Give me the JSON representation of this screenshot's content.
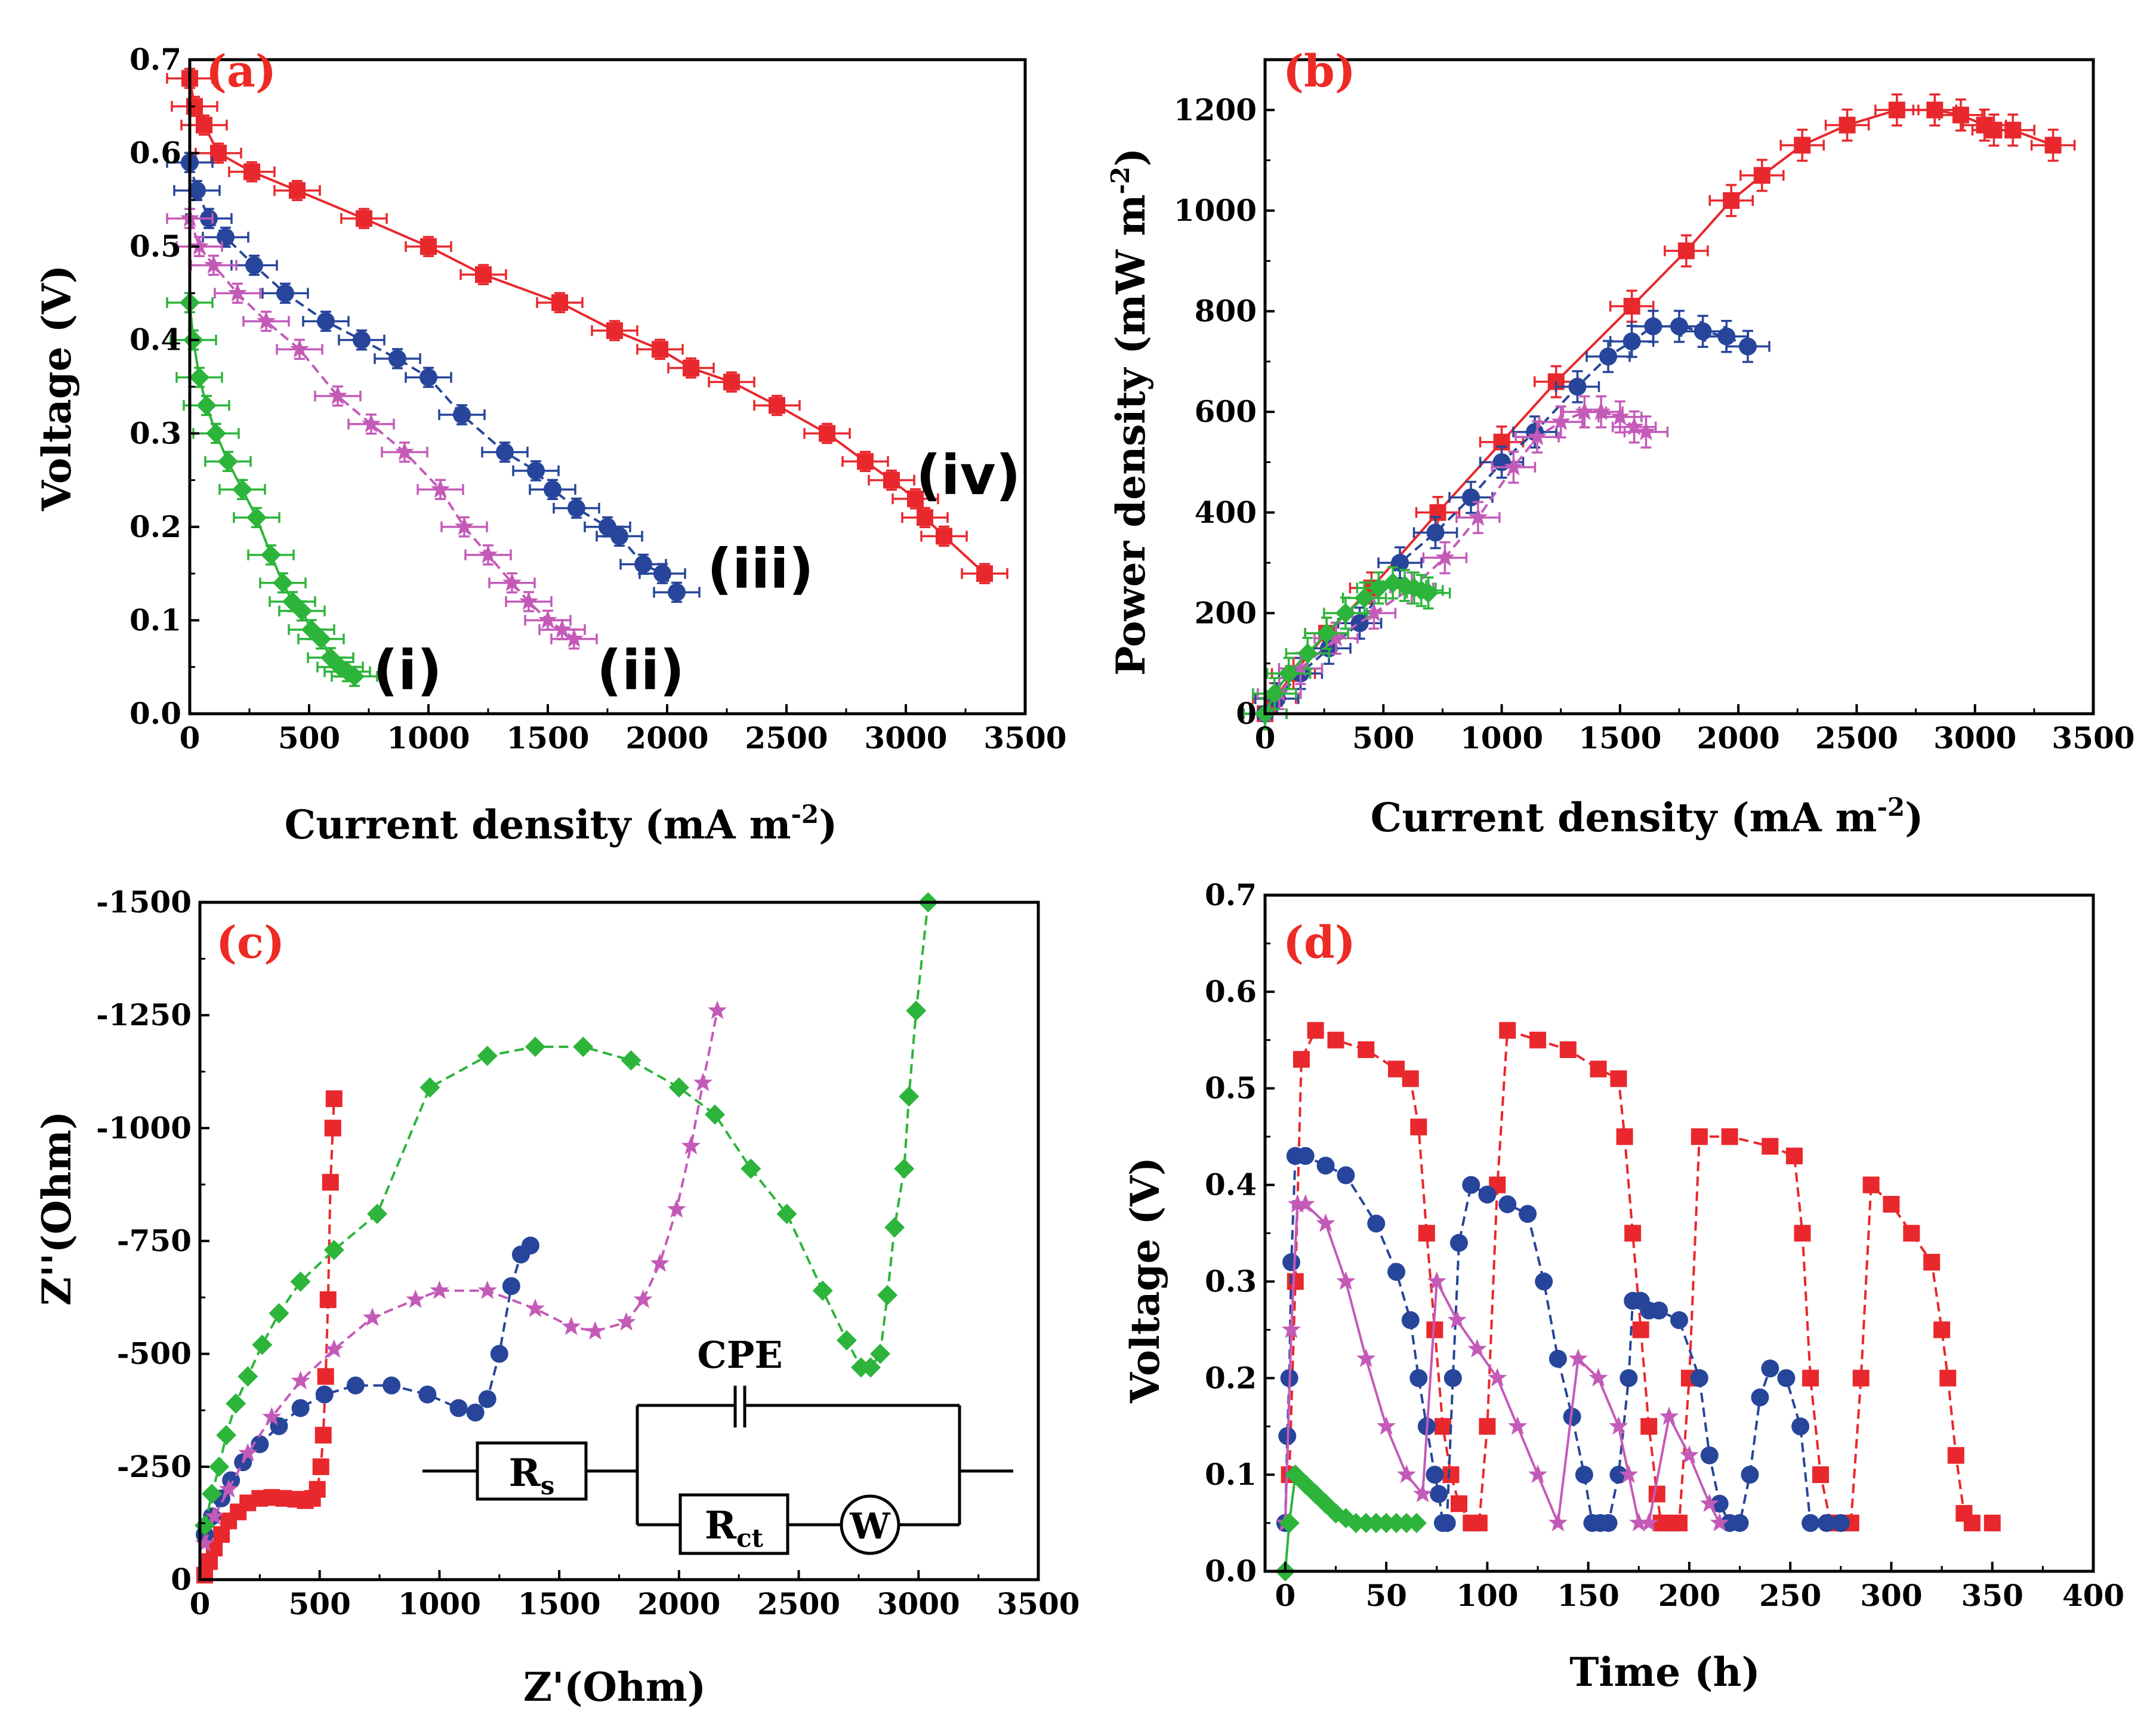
{
  "colors": {
    "red": "#e8282d",
    "blue": "#27459a",
    "pink": "#c45ab8",
    "green": "#2db43b",
    "panel_label": "#ee2a24"
  },
  "chart_data": [
    {
      "id": "a",
      "type": "line",
      "panel_label": "(a)",
      "xlabel": "Current density (mA m",
      "xlabel_sup": "-2",
      "xlabel_end": ")",
      "ylabel": "Voltage (V)",
      "xlim": [
        0,
        3500
      ],
      "ylim": [
        0,
        0.7
      ],
      "xticks": [
        "0",
        "500",
        "1000",
        "1500",
        "2000",
        "2500",
        "3000",
        "3500"
      ],
      "yticks": [
        "0.0",
        "0.1",
        "0.2",
        "0.3",
        "0.4",
        "0.5",
        "0.6",
        "0.7"
      ],
      "curve_labels": [
        "(i)",
        "(ii)",
        "(iii)",
        "(iv)"
      ],
      "series": [
        {
          "name": "(iv)",
          "color": "red",
          "marker": "square",
          "dashed": false,
          "x": [
            0,
            20,
            60,
            120,
            260,
            450,
            730,
            1000,
            1230,
            1550,
            1780,
            1970,
            2100,
            2270,
            2460,
            2670,
            2830,
            2940,
            3040,
            3080,
            3160,
            3330
          ],
          "y": [
            0.68,
            0.65,
            0.63,
            0.6,
            0.58,
            0.56,
            0.53,
            0.5,
            0.47,
            0.44,
            0.41,
            0.39,
            0.37,
            0.355,
            0.33,
            0.3,
            0.27,
            0.25,
            0.23,
            0.21,
            0.19,
            0.15
          ]
        },
        {
          "name": "(iii)",
          "color": "blue",
          "marker": "circle",
          "dashed": true,
          "x": [
            0,
            30,
            80,
            150,
            270,
            400,
            570,
            720,
            870,
            1000,
            1140,
            1320,
            1450,
            1520,
            1620,
            1750,
            1800,
            1900,
            1980,
            2040
          ],
          "y": [
            0.59,
            0.56,
            0.53,
            0.51,
            0.48,
            0.45,
            0.42,
            0.4,
            0.38,
            0.36,
            0.32,
            0.28,
            0.26,
            0.24,
            0.22,
            0.2,
            0.19,
            0.16,
            0.15,
            0.13
          ]
        },
        {
          "name": "(ii)",
          "color": "pink",
          "marker": "star",
          "dashed": true,
          "x": [
            0,
            40,
            100,
            200,
            320,
            460,
            620,
            760,
            900,
            1050,
            1150,
            1250,
            1350,
            1420,
            1500,
            1560,
            1610
          ],
          "y": [
            0.53,
            0.5,
            0.48,
            0.45,
            0.42,
            0.39,
            0.34,
            0.31,
            0.28,
            0.24,
            0.2,
            0.17,
            0.14,
            0.12,
            0.1,
            0.09,
            0.08
          ]
        },
        {
          "name": "(i)",
          "color": "green",
          "marker": "diamond",
          "dashed": false,
          "x": [
            0,
            15,
            40,
            70,
            110,
            160,
            220,
            280,
            340,
            390,
            430,
            470,
            510,
            550,
            590,
            630,
            660,
            690
          ],
          "y": [
            0.44,
            0.4,
            0.36,
            0.33,
            0.3,
            0.27,
            0.24,
            0.21,
            0.17,
            0.14,
            0.12,
            0.11,
            0.09,
            0.08,
            0.06,
            0.05,
            0.045,
            0.04
          ]
        }
      ]
    },
    {
      "id": "b",
      "type": "line",
      "panel_label": "(b)",
      "xlabel": "Current density (mA m",
      "xlabel_sup": "-2",
      "xlabel_end": ")",
      "ylabel": "Power density (mW m",
      "ylabel_sup": "-2",
      "ylabel_end": ")",
      "xlim": [
        0,
        3500
      ],
      "ylim": [
        0,
        1300
      ],
      "xticks": [
        "0",
        "500",
        "1000",
        "1500",
        "2000",
        "2500",
        "3000",
        "3500"
      ],
      "yticks": [
        "0",
        "200",
        "400",
        "600",
        "800",
        "1000",
        "1200"
      ],
      "series": [
        {
          "name": "(iv)",
          "color": "red",
          "marker": "square",
          "dashed": false,
          "x": [
            0,
            40,
            120,
            260,
            450,
            730,
            1000,
            1230,
            1550,
            1780,
            1970,
            2100,
            2270,
            2460,
            2670,
            2830,
            2940,
            3040,
            3080,
            3160,
            3330
          ],
          "y": [
            0,
            30,
            80,
            160,
            250,
            400,
            540,
            660,
            810,
            920,
            1020,
            1070,
            1130,
            1170,
            1200,
            1200,
            1190,
            1170,
            1160,
            1160,
            1130
          ]
        },
        {
          "name": "(iii)",
          "color": "blue",
          "marker": "circle",
          "dashed": true,
          "x": [
            0,
            50,
            150,
            270,
            400,
            570,
            720,
            870,
            1000,
            1140,
            1320,
            1450,
            1550,
            1640,
            1750,
            1850,
            1950,
            2040
          ],
          "y": [
            0,
            30,
            80,
            130,
            180,
            300,
            360,
            430,
            500,
            560,
            650,
            710,
            740,
            770,
            770,
            760,
            750,
            730
          ]
        },
        {
          "name": "(ii)",
          "color": "pink",
          "marker": "star",
          "dashed": true,
          "x": [
            0,
            60,
            150,
            300,
            460,
            620,
            760,
            900,
            1050,
            1150,
            1250,
            1350,
            1420,
            1500,
            1560,
            1610
          ],
          "y": [
            0,
            40,
            90,
            150,
            200,
            250,
            310,
            390,
            490,
            550,
            580,
            600,
            600,
            590,
            570,
            560
          ]
        },
        {
          "name": "(i)",
          "color": "green",
          "marker": "diamond",
          "dashed": false,
          "x": [
            0,
            40,
            100,
            180,
            260,
            340,
            420,
            480,
            540,
            590,
            630,
            660,
            690
          ],
          "y": [
            0,
            40,
            80,
            120,
            160,
            200,
            230,
            250,
            260,
            255,
            250,
            245,
            240
          ]
        }
      ]
    },
    {
      "id": "c",
      "type": "scatter",
      "panel_label": "(c)",
      "xlabel": "Z'(Ohm)",
      "ylabel": "Z''(Ohm)",
      "xlim": [
        0,
        3500
      ],
      "ylim": [
        0,
        -1500
      ],
      "xticks": [
        "0",
        "500",
        "1000",
        "1500",
        "2000",
        "2500",
        "3000",
        "3500"
      ],
      "yticks": [
        "0",
        "-250",
        "-500",
        "-750",
        "-1000",
        "-1250",
        "-1500"
      ],
      "circuit_labels": {
        "cpe": "CPE",
        "rs": "R",
        "rs_sub": "s",
        "rct": "R",
        "rct_sub": "ct",
        "w": "W"
      },
      "series": [
        {
          "name": "(iv)",
          "color": "red",
          "marker": "square",
          "dashed": true,
          "x": [
            20,
            40,
            60,
            90,
            120,
            160,
            200,
            250,
            300,
            350,
            400,
            440,
            470,
            490,
            505,
            515,
            525,
            535,
            545,
            555,
            560
          ],
          "y": [
            -10,
            -40,
            -70,
            -100,
            -130,
            -150,
            -170,
            -180,
            -182,
            -180,
            -178,
            -175,
            -180,
            -200,
            -250,
            -320,
            -450,
            -620,
            -880,
            -1000,
            -1065
          ]
        },
        {
          "name": "(iii)",
          "color": "blue",
          "marker": "circle",
          "dashed": true,
          "x": [
            20,
            50,
            90,
            130,
            180,
            250,
            330,
            420,
            520,
            650,
            800,
            950,
            1080,
            1150,
            1200,
            1250,
            1300,
            1340,
            1380
          ],
          "y": [
            -100,
            -140,
            -180,
            -220,
            -260,
            -300,
            -340,
            -380,
            -410,
            -430,
            -430,
            -410,
            -380,
            -370,
            -400,
            -500,
            -650,
            -720,
            -740
          ]
        },
        {
          "name": "(ii)",
          "color": "pink",
          "marker": "star",
          "dashed": true,
          "x": [
            20,
            60,
            120,
            200,
            300,
            420,
            560,
            720,
            900,
            1000,
            1200,
            1400,
            1550,
            1650,
            1780,
            1850,
            1920,
            1990,
            2050,
            2100,
            2160
          ],
          "y": [
            -80,
            -140,
            -200,
            -280,
            -360,
            -440,
            -510,
            -580,
            -620,
            -640,
            -640,
            -600,
            -560,
            -550,
            -570,
            -620,
            -700,
            -820,
            -960,
            -1100,
            -1260
          ]
        },
        {
          "name": "(i)",
          "color": "green",
          "marker": "diamond",
          "dashed": true,
          "x": [
            20,
            50,
            80,
            110,
            150,
            200,
            260,
            330,
            420,
            560,
            740,
            960,
            1200,
            1400,
            1600,
            1800,
            2000,
            2150,
            2300,
            2450,
            2600,
            2700,
            2760,
            2800,
            2840,
            2870,
            2900,
            2940,
            2960,
            2990,
            3040
          ],
          "y": [
            -120,
            -190,
            -250,
            -320,
            -390,
            -450,
            -520,
            -590,
            -660,
            -730,
            -810,
            -1090,
            -1160,
            -1180,
            -1180,
            -1150,
            -1090,
            -1030,
            -910,
            -810,
            -640,
            -530,
            -470,
            -470,
            -500,
            -630,
            -780,
            -910,
            -1070,
            -1260,
            -1500
          ]
        }
      ]
    },
    {
      "id": "d",
      "type": "line",
      "panel_label": "(d)",
      "xlabel": "Time (h)",
      "ylabel": "Voltage (V)",
      "xlim": [
        -10,
        400
      ],
      "ylim": [
        0,
        0.7
      ],
      "xticks": [
        "0",
        "50",
        "100",
        "150",
        "200",
        "250",
        "300",
        "350",
        "400"
      ],
      "yticks": [
        "0.0",
        "0.1",
        "0.2",
        "0.3",
        "0.4",
        "0.5",
        "0.6",
        "0.7"
      ],
      "series": [
        {
          "name": "(iv)",
          "color": "red",
          "marker": "square",
          "dashed": true,
          "x": [
            2,
            5,
            8,
            15,
            25,
            40,
            55,
            62,
            66,
            70,
            74,
            78,
            82,
            86,
            92,
            96,
            100,
            105,
            110,
            125,
            140,
            155,
            165,
            168,
            172,
            176,
            180,
            184,
            186,
            190,
            195,
            200,
            205,
            220,
            240,
            252,
            256,
            260,
            265,
            270,
            275,
            280,
            285,
            290,
            300,
            310,
            320,
            325,
            328,
            332,
            336,
            340,
            350
          ],
          "y": [
            0.1,
            0.3,
            0.53,
            0.56,
            0.55,
            0.54,
            0.52,
            0.51,
            0.46,
            0.35,
            0.25,
            0.15,
            0.1,
            0.07,
            0.05,
            0.05,
            0.15,
            0.4,
            0.56,
            0.55,
            0.54,
            0.52,
            0.51,
            0.45,
            0.35,
            0.25,
            0.15,
            0.08,
            0.05,
            0.05,
            0.05,
            0.2,
            0.45,
            0.45,
            0.44,
            0.43,
            0.35,
            0.2,
            0.1,
            0.05,
            0.05,
            0.05,
            0.2,
            0.4,
            0.38,
            0.35,
            0.32,
            0.25,
            0.2,
            0.12,
            0.06,
            0.05,
            0.05
          ]
        },
        {
          "name": "(iii)",
          "color": "blue",
          "marker": "circle",
          "dashed": true,
          "x": [
            0,
            1,
            2,
            3,
            5,
            10,
            20,
            30,
            45,
            55,
            62,
            66,
            70,
            74,
            76,
            78,
            80,
            83,
            86,
            92,
            100,
            110,
            120,
            128,
            135,
            142,
            148,
            152,
            156,
            160,
            165,
            170,
            172,
            176,
            180,
            185,
            195,
            205,
            210,
            215,
            220,
            225,
            230,
            235,
            240,
            248,
            255,
            260,
            268,
            275
          ],
          "y": [
            0.05,
            0.14,
            0.2,
            0.32,
            0.43,
            0.43,
            0.42,
            0.41,
            0.36,
            0.31,
            0.26,
            0.2,
            0.15,
            0.1,
            0.08,
            0.05,
            0.05,
            0.2,
            0.34,
            0.4,
            0.39,
            0.38,
            0.37,
            0.3,
            0.22,
            0.16,
            0.1,
            0.05,
            0.05,
            0.05,
            0.1,
            0.2,
            0.28,
            0.28,
            0.27,
            0.27,
            0.26,
            0.2,
            0.12,
            0.07,
            0.05,
            0.05,
            0.1,
            0.18,
            0.21,
            0.2,
            0.15,
            0.05,
            0.05,
            0.05
          ]
        },
        {
          "name": "(ii)",
          "color": "pink",
          "marker": "star",
          "dashed": false,
          "x": [
            0,
            3,
            6,
            10,
            20,
            30,
            40,
            50,
            60,
            68,
            75,
            85,
            95,
            105,
            115,
            125,
            135,
            145,
            155,
            165,
            170,
            175,
            180,
            190,
            200,
            210,
            215
          ],
          "y": [
            0.05,
            0.25,
            0.38,
            0.38,
            0.36,
            0.3,
            0.22,
            0.15,
            0.1,
            0.08,
            0.3,
            0.26,
            0.23,
            0.2,
            0.15,
            0.1,
            0.05,
            0.22,
            0.2,
            0.15,
            0.1,
            0.05,
            0.05,
            0.16,
            0.12,
            0.07,
            0.05
          ]
        },
        {
          "name": "(i)",
          "color": "green",
          "marker": "diamond",
          "dashed": false,
          "x": [
            0,
            2,
            5,
            10,
            15,
            20,
            25,
            30,
            35,
            40,
            45,
            50,
            55,
            60,
            65
          ],
          "y": [
            0.0,
            0.05,
            0.1,
            0.09,
            0.08,
            0.07,
            0.06,
            0.055,
            0.05,
            0.05,
            0.05,
            0.05,
            0.05,
            0.05,
            0.05
          ]
        }
      ]
    }
  ]
}
